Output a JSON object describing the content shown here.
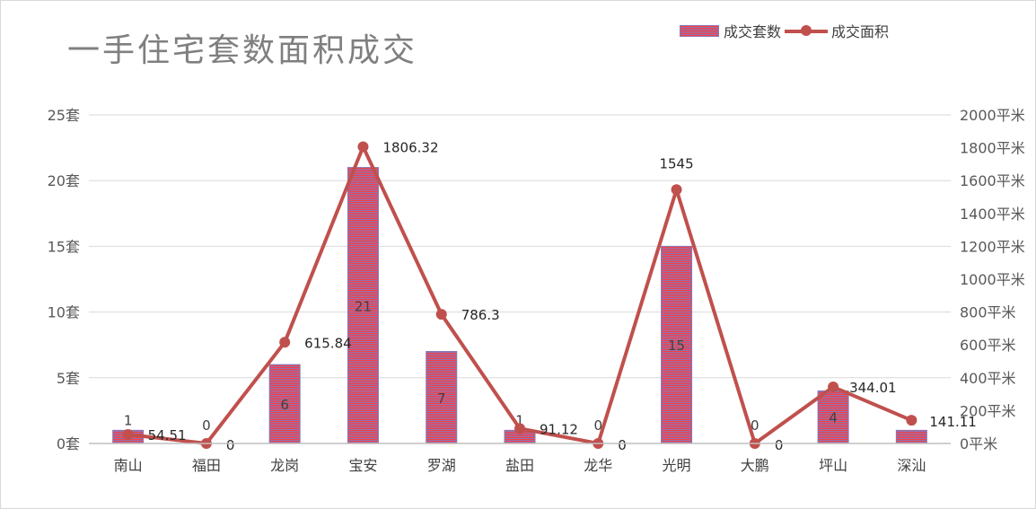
{
  "chart_data": {
    "type": "bar",
    "title": "一手住宅套数面积成交",
    "categories": [
      "南山",
      "福田",
      "龙岗",
      "宝安",
      "罗湖",
      "盐田",
      "龙华",
      "光明",
      "大鹏",
      "坪山",
      "深汕"
    ],
    "series": [
      {
        "name": "成交套数",
        "type": "bar",
        "axis": "left",
        "values": [
          1,
          0,
          6,
          21,
          7,
          1,
          0,
          15,
          0,
          4,
          1
        ],
        "labels": [
          "1",
          "0",
          "6",
          "21",
          "7",
          "1",
          "0",
          "15",
          "0",
          "4",
          "1"
        ],
        "color": "#ff3b3b",
        "stripe_color": "#8a76b8"
      },
      {
        "name": "成交面积",
        "type": "line",
        "axis": "right",
        "values": [
          54.51,
          0,
          615.84,
          1806.32,
          786.3,
          91.12,
          0,
          1545,
          0,
          344.01,
          141.11
        ],
        "labels": [
          "54.51",
          "0",
          "615.84",
          "1806.32",
          "786.3",
          "91.12",
          "0",
          "1545",
          "0",
          "344.01",
          "141.11"
        ],
        "color": "#c0504d"
      }
    ],
    "y_left": {
      "min": 0,
      "max": 25,
      "ticks": [
        0,
        5,
        10,
        15,
        20,
        25
      ],
      "tick_labels": [
        "0套",
        "5套",
        "10套",
        "15套",
        "20套",
        "25套"
      ]
    },
    "y_right": {
      "min": 0,
      "max": 2000,
      "ticks": [
        0,
        200,
        400,
        600,
        800,
        1000,
        1200,
        1400,
        1600,
        1800,
        2000
      ],
      "tick_labels": [
        "0平米",
        "200平米",
        "400平米",
        "600平米",
        "800平米",
        "1000平米",
        "1200平米",
        "1400平米",
        "1600平米",
        "1800平米",
        "2000平米"
      ]
    },
    "grid": true,
    "legend_position": "top-right",
    "colors": {
      "grid": "#d9d9d9",
      "axis": "#bfbfbf",
      "title": "#7f7f7f"
    }
  }
}
